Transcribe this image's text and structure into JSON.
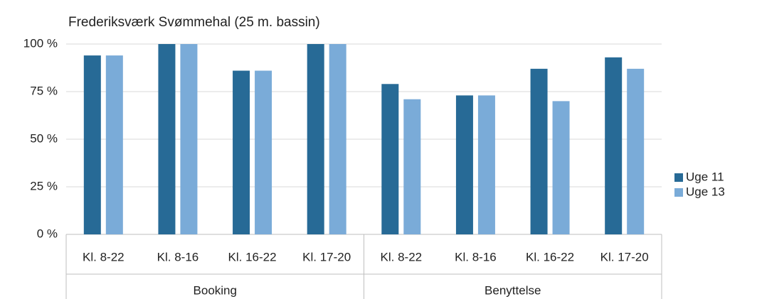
{
  "chart_data": {
    "type": "bar",
    "title": "Frederiksværk Svømmehal (25 m. bassin)",
    "categories": [
      "Kl. 8-22",
      "Kl. 8-16",
      "Kl. 16-22",
      "Kl. 17-20",
      "Kl. 8-22",
      "Kl. 8-16",
      "Kl. 16-22",
      "Kl. 17-20"
    ],
    "groups": [
      "Booking",
      "Benyttelse"
    ],
    "series": [
      {
        "name": "Uge 11",
        "color": "#276a96",
        "values": [
          94,
          100,
          86,
          100,
          79,
          73,
          87,
          93
        ]
      },
      {
        "name": "Uge 13",
        "color": "#7aabd8",
        "values": [
          94,
          100,
          86,
          100,
          71,
          73,
          70,
          87
        ]
      }
    ],
    "ylim": [
      0,
      100
    ],
    "yticks": [
      {
        "value": 0,
        "label": "0 %"
      },
      {
        "value": 25,
        "label": "25 %"
      },
      {
        "value": 50,
        "label": "50 %"
      },
      {
        "value": 75,
        "label": "75 %"
      },
      {
        "value": 100,
        "label": "100 %"
      }
    ],
    "grid": true,
    "legend": "right"
  }
}
